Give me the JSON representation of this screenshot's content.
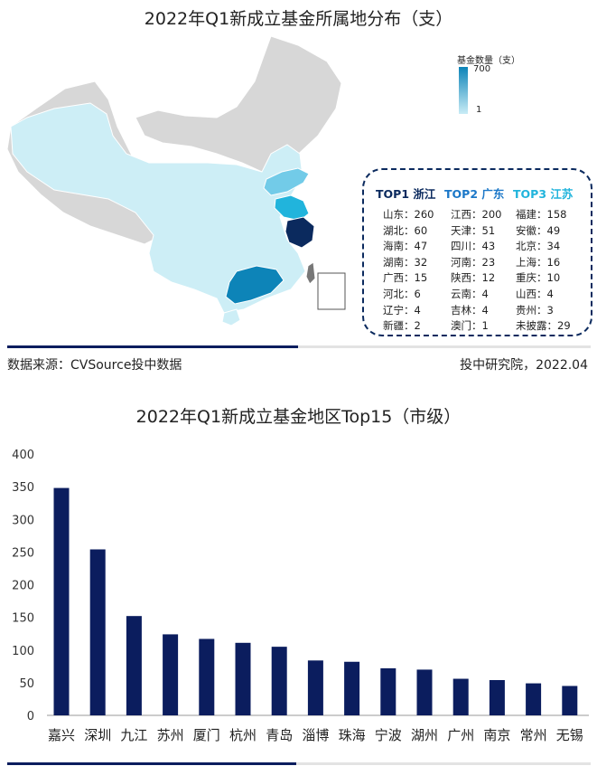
{
  "map": {
    "title": "2022年Q1新成立基金所属地分布（支）",
    "legend": {
      "title": "基金数量（支）",
      "max": "700",
      "min": "1"
    },
    "top": [
      {
        "rank": "TOP1",
        "name": "浙江",
        "color": "#0b2a5e"
      },
      {
        "rank": "TOP2",
        "name": "广东",
        "color": "#1c78c8"
      },
      {
        "rank": "TOP3",
        "name": "江苏",
        "color": "#21b4dc"
      }
    ],
    "grid": [
      [
        "山东：260",
        "江西：200",
        "福建：158"
      ],
      [
        "湖北：60",
        "天津：51",
        "安徽：49"
      ],
      [
        "海南：47",
        "四川：43",
        "北京：34"
      ],
      [
        "湖南：32",
        "河南：23",
        "上海：16"
      ],
      [
        "广西：15",
        "陕西：12",
        "重庆：10"
      ],
      [
        "河北：6",
        "云南：4",
        "山西：4"
      ],
      [
        "辽宁：4",
        "吉林：4",
        "贵州：3"
      ],
      [
        "新疆：2",
        "澳门：1",
        "未披露：29"
      ]
    ],
    "source_left": "数据来源：CVSource投中数据",
    "source_right": "投中研究院，2022.04"
  },
  "chart_data": {
    "type": "bar",
    "title": "2022年Q1新成立基金地区Top15（市级）",
    "categories": [
      "嘉兴",
      "深圳",
      "九江",
      "苏州",
      "厦门",
      "杭州",
      "青岛",
      "淄博",
      "珠海",
      "宁波",
      "湖州",
      "广州",
      "南京",
      "常州",
      "无锡"
    ],
    "values": [
      348,
      254,
      152,
      124,
      117,
      111,
      105,
      84,
      82,
      72,
      70,
      56,
      54,
      49,
      45
    ],
    "ylim": [
      0,
      400
    ],
    "yticks": [
      "0",
      "50",
      "100",
      "150",
      "200",
      "250",
      "300",
      "350",
      "400"
    ],
    "bar_color": "#0b1d5e",
    "grid": false
  }
}
